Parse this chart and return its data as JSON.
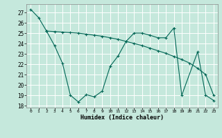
{
  "xlabel": "Humidex (Indice chaleur)",
  "bg_color": "#c5e8dc",
  "line_color": "#006655",
  "grid_color": "#ffffff",
  "xlim_min": -0.5,
  "xlim_max": 23.5,
  "ylim_min": 17.8,
  "ylim_max": 27.8,
  "yticks": [
    18,
    19,
    20,
    21,
    22,
    23,
    24,
    25,
    26,
    27
  ],
  "xticks": [
    0,
    1,
    2,
    3,
    4,
    5,
    6,
    7,
    8,
    9,
    10,
    11,
    12,
    13,
    14,
    15,
    16,
    17,
    18,
    19,
    20,
    21,
    22,
    23
  ],
  "series": [
    {
      "x": [
        0,
        1,
        2
      ],
      "y": [
        27.3,
        26.5,
        25.2
      ]
    },
    {
      "x": [
        2,
        3,
        4,
        5,
        6,
        7,
        8,
        9,
        10,
        11,
        12,
        13,
        14,
        15,
        16,
        17,
        18,
        19,
        20,
        21,
        22,
        23
      ],
      "y": [
        25.2,
        25.15,
        25.1,
        25.05,
        25.0,
        24.9,
        24.8,
        24.7,
        24.55,
        24.4,
        24.2,
        24.0,
        23.8,
        23.55,
        23.3,
        23.05,
        22.75,
        22.45,
        22.1,
        21.6,
        21.0,
        19.0
      ]
    },
    {
      "x": [
        2,
        3,
        4,
        5,
        6,
        7,
        8,
        9,
        10,
        11,
        12,
        13,
        14,
        15,
        16,
        17,
        18,
        19,
        21,
        22,
        23
      ],
      "y": [
        25.2,
        23.8,
        22.1,
        19.0,
        18.35,
        19.05,
        18.85,
        19.4,
        21.8,
        22.8,
        24.2,
        25.0,
        25.0,
        24.8,
        24.55,
        24.55,
        25.5,
        19.0,
        23.2,
        19.0,
        18.5
      ]
    }
  ]
}
